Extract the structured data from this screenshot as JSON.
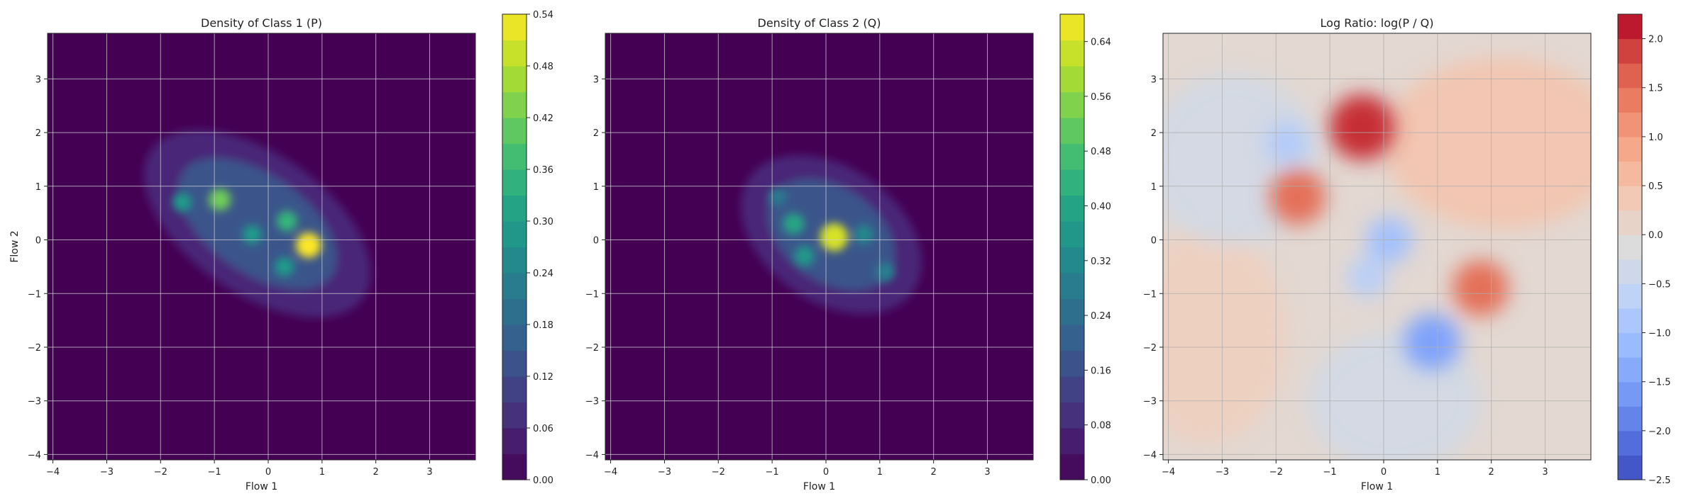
{
  "chart_data": [
    {
      "type": "heatmap",
      "title": "Density of Class 1 (P)",
      "xlabel": "Flow 1",
      "ylabel": "Flow 2",
      "xlim": [
        -4.1,
        3.85
      ],
      "ylim": [
        -4.1,
        3.85
      ],
      "xticks": [
        -4,
        -3,
        -2,
        -1,
        0,
        1,
        2,
        3
      ],
      "yticks": [
        -4,
        -3,
        -2,
        -1,
        0,
        1,
        2,
        3
      ],
      "grid": true,
      "colormap": "viridis",
      "colorbar": {
        "min": 0.0,
        "max": 0.54,
        "ticks": [
          "0.00",
          "0.06",
          "0.12",
          "0.18",
          "0.24",
          "0.30",
          "0.36",
          "0.42",
          "0.48",
          "0.54"
        ]
      },
      "hotspots": [
        {
          "x": -0.9,
          "y": 0.75,
          "value": 0.42
        },
        {
          "x": 0.75,
          "y": -0.1,
          "value": 0.54
        },
        {
          "x": 0.35,
          "y": 0.35,
          "value": 0.36
        },
        {
          "x": -1.6,
          "y": 0.7,
          "value": 0.3
        },
        {
          "x": 0.3,
          "y": -0.5,
          "value": 0.3
        },
        {
          "x": -0.3,
          "y": 0.1,
          "value": 0.3
        }
      ]
    },
    {
      "type": "heatmap",
      "title": "Density of Class 2 (Q)",
      "xlabel": "Flow 1",
      "ylabel": "",
      "xlim": [
        -4.1,
        3.85
      ],
      "ylim": [
        -4.1,
        3.85
      ],
      "xticks": [
        -4,
        -3,
        -2,
        -1,
        0,
        1,
        2,
        3
      ],
      "yticks": [
        -4,
        -3,
        -2,
        -1,
        0,
        1,
        2,
        3
      ],
      "grid": true,
      "colormap": "viridis",
      "colorbar": {
        "min": 0.0,
        "max": 0.68,
        "ticks": [
          "0.00",
          "0.08",
          "0.16",
          "0.24",
          "0.32",
          "0.40",
          "0.48",
          "0.56",
          "0.64"
        ]
      },
      "hotspots": [
        {
          "x": 0.15,
          "y": 0.05,
          "value": 0.64
        },
        {
          "x": -0.6,
          "y": 0.3,
          "value": 0.4
        },
        {
          "x": -0.4,
          "y": -0.3,
          "value": 0.36
        },
        {
          "x": 0.7,
          "y": 0.1,
          "value": 0.32
        },
        {
          "x": -0.9,
          "y": 0.8,
          "value": 0.28
        },
        {
          "x": 1.1,
          "y": -0.6,
          "value": 0.3
        }
      ]
    },
    {
      "type": "heatmap",
      "title": "Log Ratio: log(P / Q)",
      "xlabel": "Flow 1",
      "ylabel": "",
      "xlim": [
        -4.1,
        3.85
      ],
      "ylim": [
        -4.1,
        3.85
      ],
      "xticks": [
        -4,
        -3,
        -2,
        -1,
        0,
        1,
        2,
        3
      ],
      "yticks": [
        -4,
        -3,
        -2,
        -1,
        0,
        1,
        2,
        3
      ],
      "grid": true,
      "colormap": "coolwarm",
      "colorbar": {
        "min": -2.5,
        "max": 2.25,
        "ticks": [
          "-2.5",
          "-2.0",
          "-1.5",
          "-1.0",
          "-0.5",
          "0.0",
          "0.5",
          "1.0",
          "1.5",
          "2.0"
        ]
      },
      "hotspots": [
        {
          "x": -0.4,
          "y": 2.1,
          "value": 2.0
        },
        {
          "x": -1.6,
          "y": 0.8,
          "value": 1.5
        },
        {
          "x": 1.8,
          "y": -0.9,
          "value": 1.5
        },
        {
          "x": 0.9,
          "y": -1.9,
          "value": -1.5
        },
        {
          "x": 0.1,
          "y": 0.0,
          "value": -1.0
        },
        {
          "x": -1.8,
          "y": 1.8,
          "value": -0.8
        },
        {
          "x": -0.3,
          "y": -0.7,
          "value": -0.7
        }
      ]
    }
  ]
}
